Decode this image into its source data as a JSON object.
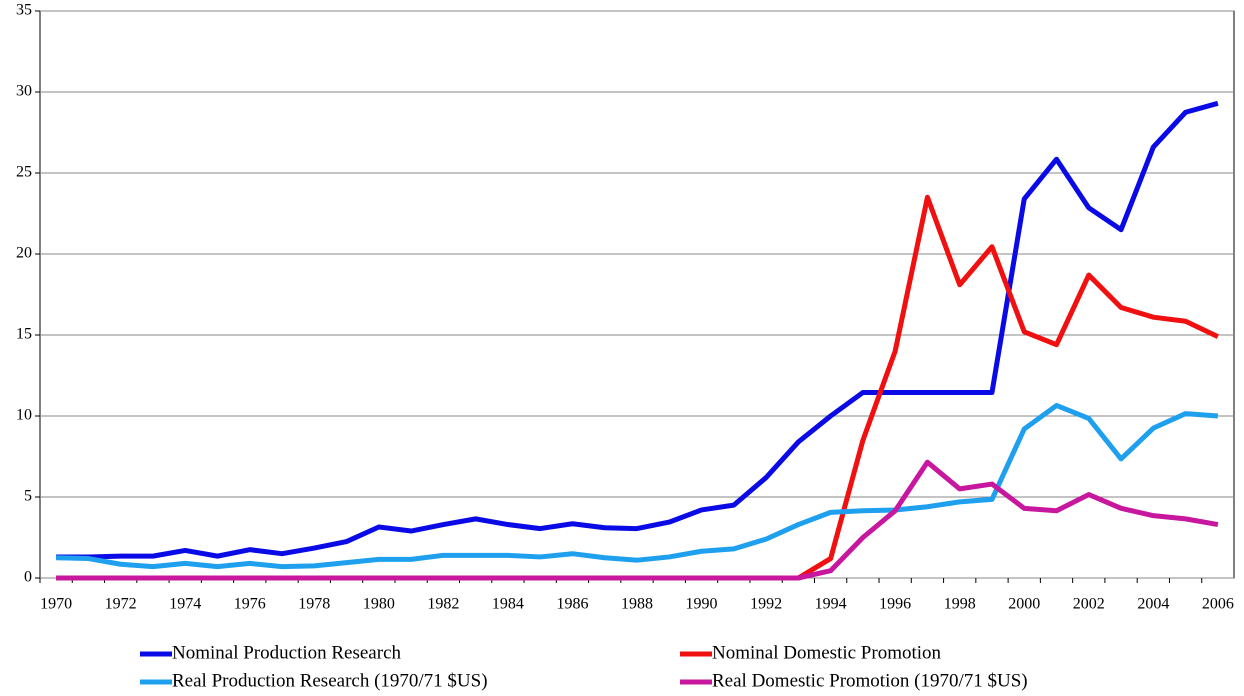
{
  "chart_data": {
    "type": "line",
    "categories": [
      "1970",
      null,
      "1972",
      null,
      "1974",
      null,
      "1976",
      null,
      "1978",
      null,
      "1980",
      null,
      "1982",
      null,
      "1984",
      null,
      "1986",
      null,
      "1988",
      null,
      "1990",
      null,
      "1992",
      null,
      "1994",
      null,
      "1996",
      null,
      "1998",
      null,
      "2000",
      null,
      "2002",
      null,
      "2004",
      null,
      "2006"
    ],
    "series": [
      {
        "name": "Nominal Production Research",
        "color": "#0a0ae6",
        "values": [
          1.3,
          1.3,
          1.35,
          1.35,
          1.7,
          1.35,
          1.75,
          1.5,
          1.85,
          2.25,
          3.15,
          2.9,
          3.3,
          3.65,
          3.3,
          3.05,
          3.35,
          3.1,
          3.05,
          3.45,
          4.2,
          4.5,
          6.2,
          8.4,
          10.0,
          11.45,
          11.45,
          11.45,
          11.45,
          11.45,
          23.4,
          25.85,
          22.85,
          21.5,
          26.6,
          28.75,
          29.3
        ]
      },
      {
        "name": "Nominal Domestic Promotion",
        "color": "#f01010",
        "values": [
          0,
          0,
          0,
          0,
          0,
          0,
          0,
          0,
          0,
          0,
          0,
          0,
          0,
          0,
          0,
          0,
          0,
          0,
          0,
          0,
          0,
          0,
          0,
          0,
          1.2,
          8.5,
          14.0,
          23.5,
          18.1,
          20.45,
          15.2,
          14.4,
          18.7,
          16.7,
          16.1,
          15.85,
          14.9
        ]
      },
      {
        "name": "Real Production Research (1970/71 $US)",
        "color": "#1ea0ef",
        "values": [
          1.25,
          1.2,
          0.85,
          0.7,
          0.9,
          0.7,
          0.9,
          0.7,
          0.75,
          0.95,
          1.15,
          1.15,
          1.4,
          1.4,
          1.4,
          1.3,
          1.5,
          1.25,
          1.1,
          1.3,
          1.65,
          1.8,
          2.4,
          3.3,
          4.05,
          4.15,
          4.2,
          4.4,
          4.7,
          4.85,
          9.2,
          10.65,
          9.85,
          7.35,
          9.25,
          10.15,
          10.0
        ]
      },
      {
        "name": "Real Domestic Promotion (1970/71 $US)",
        "color": "#c8179f",
        "values": [
          0,
          0,
          0,
          0,
          0,
          0,
          0,
          0,
          0,
          0,
          0,
          0,
          0,
          0,
          0,
          0,
          0,
          0,
          0,
          0,
          0,
          0,
          0,
          0,
          0.45,
          2.5,
          4.15,
          7.15,
          5.5,
          5.8,
          4.3,
          4.15,
          5.15,
          4.3,
          3.85,
          3.65,
          3.3
        ]
      }
    ],
    "ylim": [
      0,
      35
    ],
    "yticks": [
      0,
      5,
      10,
      15,
      20,
      25,
      30,
      35
    ],
    "grid": true,
    "legend": "bottom"
  }
}
